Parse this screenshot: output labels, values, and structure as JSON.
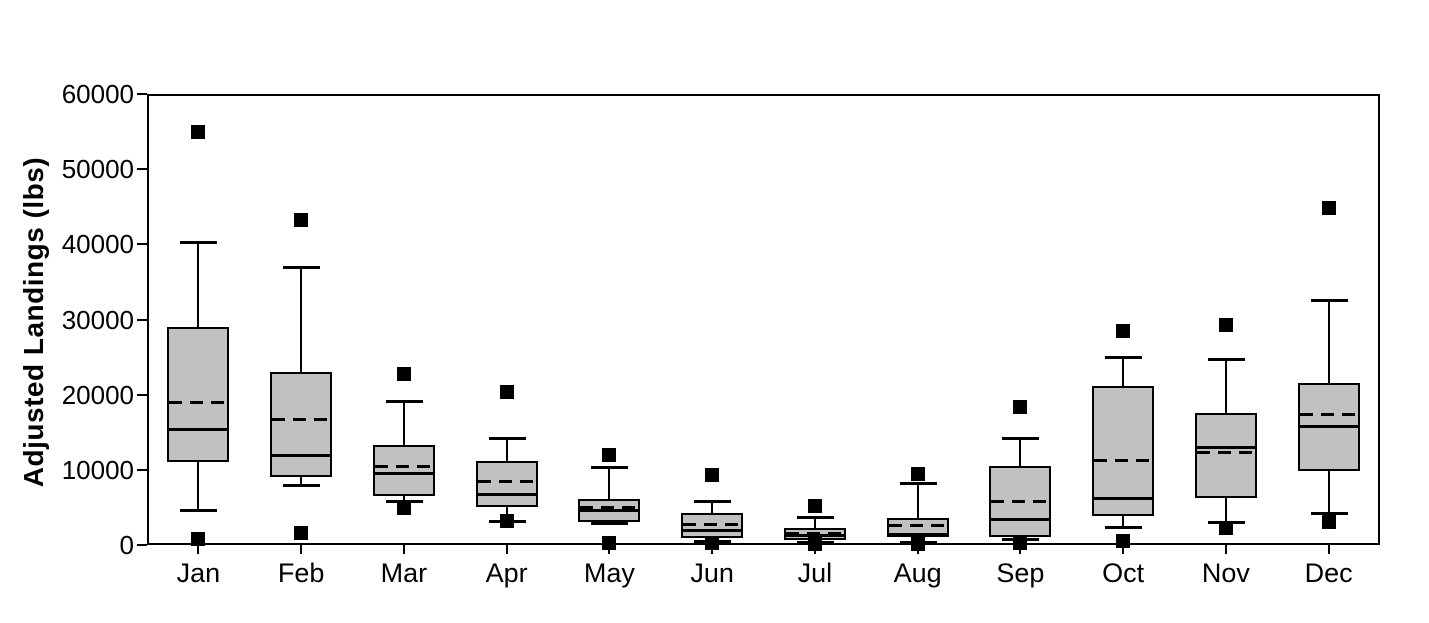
{
  "chart_data": {
    "type": "boxplot",
    "title": "",
    "xlabel": "",
    "ylabel": "Adjusted Landings (lbs)",
    "ylim": [
      0,
      60000
    ],
    "yticks": [
      0,
      10000,
      20000,
      30000,
      40000,
      50000,
      60000
    ],
    "grid": false,
    "legend": "none",
    "box_fill_color": "#c1c1c1",
    "line_color": "#000000",
    "marker": "black-square",
    "median_style": "solid",
    "mean_style": "dashed",
    "categories": [
      "Jan",
      "Feb",
      "Mar",
      "Apr",
      "May",
      "Jun",
      "Jul",
      "Aug",
      "Sep",
      "Oct",
      "Nov",
      "Dec"
    ],
    "stats": [
      {
        "month": "Jan",
        "whisker_low": 4500,
        "q1": 11000,
        "median": 15400,
        "mean": 19000,
        "q3": 29000,
        "whisker_high": 40300,
        "outlier_low": 800,
        "outlier_high": 55000
      },
      {
        "month": "Feb",
        "whisker_low": 7900,
        "q1": 9000,
        "median": 12000,
        "mean": 16700,
        "q3": 23000,
        "whisker_high": 37000,
        "outlier_low": 1600,
        "outlier_high": 43300
      },
      {
        "month": "Mar",
        "whisker_low": 5700,
        "q1": 6500,
        "median": 9600,
        "mean": 10500,
        "q3": 13300,
        "whisker_high": 19200,
        "outlier_low": 4900,
        "outlier_high": 22700
      },
      {
        "month": "Apr",
        "whisker_low": 3000,
        "q1": 5000,
        "median": 6800,
        "mean": 8500,
        "q3": 11200,
        "whisker_high": 14300,
        "outlier_low": 3200,
        "outlier_high": 20300
      },
      {
        "month": "May",
        "whisker_low": 2800,
        "q1": 3100,
        "median": 4600,
        "mean": 5100,
        "q3": 6100,
        "whisker_high": 10400,
        "outlier_low": 200,
        "outlier_high": 12000
      },
      {
        "month": "Jun",
        "whisker_low": 400,
        "q1": 900,
        "median": 2000,
        "mean": 2800,
        "q3": 4200,
        "whisker_high": 5900,
        "outlier_low": 200,
        "outlier_high": 9300
      },
      {
        "month": "Jul",
        "whisker_low": 300,
        "q1": 600,
        "median": 1300,
        "mean": 1600,
        "q3": 2200,
        "whisker_high": 3700,
        "outlier_low": 100,
        "outlier_high": 5200
      },
      {
        "month": "Aug",
        "whisker_low": 200,
        "q1": 1100,
        "median": 1400,
        "mean": 2600,
        "q3": 3600,
        "whisker_high": 8300,
        "outlier_low": 100,
        "outlier_high": 9400
      },
      {
        "month": "Sep",
        "whisker_low": 600,
        "q1": 1000,
        "median": 3500,
        "mean": 5800,
        "q3": 10500,
        "whisker_high": 14200,
        "outlier_low": 200,
        "outlier_high": 18300
      },
      {
        "month": "Oct",
        "whisker_low": 2300,
        "q1": 3900,
        "median": 6200,
        "mean": 11300,
        "q3": 21200,
        "whisker_high": 25000,
        "outlier_low": 500,
        "outlier_high": 28500
      },
      {
        "month": "Nov",
        "whisker_low": 2900,
        "q1": 6200,
        "median": 13000,
        "mean": 12400,
        "q3": 17600,
        "whisker_high": 24800,
        "outlier_low": 2300,
        "outlier_high": 29300
      },
      {
        "month": "Dec",
        "whisker_low": 4100,
        "q1": 9800,
        "median": 15800,
        "mean": 17400,
        "q3": 21600,
        "whisker_high": 32600,
        "outlier_low": 3000,
        "outlier_high": 44800
      }
    ]
  }
}
